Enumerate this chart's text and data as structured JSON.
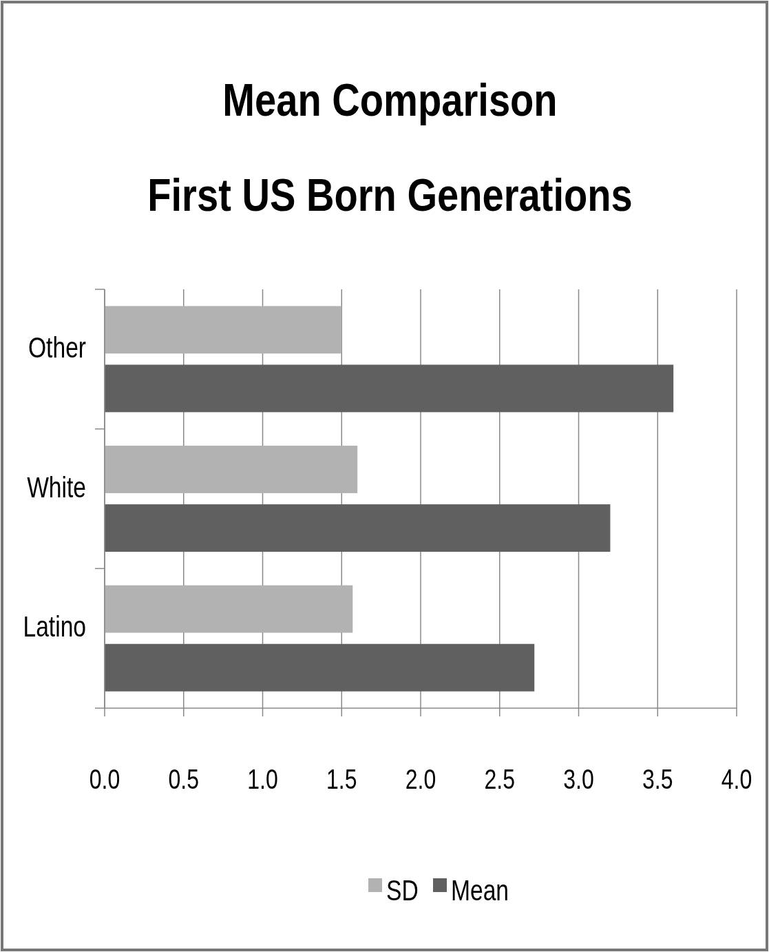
{
  "chart_data": {
    "type": "bar",
    "orientation": "horizontal",
    "title": "Mean Comparison\nFirst US Born  Generations",
    "categories": [
      "Other",
      "White",
      "Latino"
    ],
    "series": [
      {
        "name": "SD",
        "color": "#b2b2b2",
        "values": [
          1.5,
          1.6,
          1.57
        ]
      },
      {
        "name": "Mean",
        "color": "#606060",
        "values": [
          3.6,
          3.2,
          2.72
        ]
      }
    ],
    "xlim": [
      0,
      4
    ],
    "xticks": [
      {
        "value": 0,
        "label": "0.0"
      },
      {
        "value": 0.5,
        "label": "0.5"
      },
      {
        "value": 1,
        "label": "1.0"
      },
      {
        "value": 1.5,
        "label": "1.5"
      },
      {
        "value": 2,
        "label": "2.0"
      },
      {
        "value": 2.5,
        "label": "2.5"
      },
      {
        "value": 3,
        "label": "3.0"
      },
      {
        "value": 3.5,
        "label": "3.5"
      },
      {
        "value": 4,
        "label": "4.0"
      }
    ],
    "grid": "x",
    "legend": "bottom"
  }
}
